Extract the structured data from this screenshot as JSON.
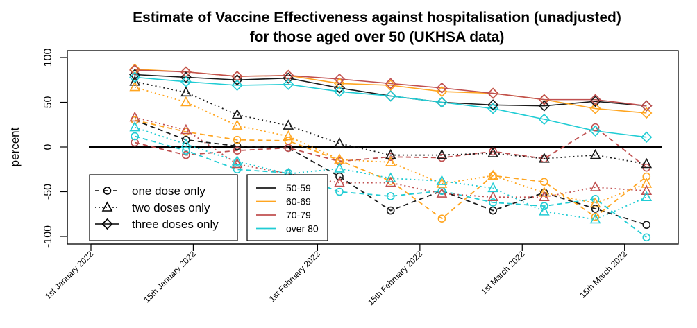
{
  "chart_data": {
    "type": "line",
    "title": [
      "Estimate of Vaccine Effectiveness against hospitalisation (unadjusted)",
      "for those aged over 50 (UKHSA data)"
    ],
    "xlabel": "",
    "ylabel": "percent",
    "ylim": [
      -110,
      110
    ],
    "yticks": [
      100,
      50,
      0,
      -50,
      -100
    ],
    "xlim": [
      "2021-12-25",
      "2022-03-26"
    ],
    "xticks": [
      {
        "date": "2022-01-01",
        "label": "1st January 2022"
      },
      {
        "date": "2022-01-15",
        "label": "15th January 2022"
      },
      {
        "date": "2022-02-01",
        "label": "1st February 2022"
      },
      {
        "date": "2022-02-15",
        "label": "15th February 2022"
      },
      {
        "date": "2022-03-01",
        "label": "1st March 2022"
      },
      {
        "date": "2022-03-15",
        "label": "15th March 2022"
      }
    ],
    "reference_line": 0,
    "x": [
      "2022-01-07",
      "2022-01-14",
      "2022-01-21",
      "2022-01-28",
      "2022-02-04",
      "2022-02-11",
      "2022-02-18",
      "2022-02-25",
      "2022-03-04",
      "2022-03-11",
      "2022-03-18"
    ],
    "age_groups": [
      {
        "name": "50-59",
        "color": "#1a1a1a"
      },
      {
        "name": "60-69",
        "color": "#ffa520"
      },
      {
        "name": "70-79",
        "color": "#c05050"
      },
      {
        "name": "over 80",
        "color": "#20ccd4"
      }
    ],
    "dose_types": [
      {
        "name": "one dose only",
        "marker": "circle",
        "line": "dashed"
      },
      {
        "name": "two doses only",
        "marker": "triangle",
        "line": "dotted"
      },
      {
        "name": "three doses only",
        "marker": "diamond",
        "line": "solid"
      }
    ],
    "series": [
      {
        "name": "one dose only, 50-59",
        "dose": "one dose only",
        "age": "50-59",
        "values": [
          30,
          8,
          1,
          -1,
          -33,
          -71,
          -49,
          -71,
          -51,
          -69,
          -87
        ]
      },
      {
        "name": "one dose only, 60-69",
        "dose": "one dose only",
        "age": "60-69",
        "values": [
          30,
          17,
          8,
          7,
          -15,
          -38,
          -80,
          -32,
          -39,
          -78,
          -33
        ]
      },
      {
        "name": "one dose only, 70-79",
        "dose": "one dose only",
        "age": "70-79",
        "values": [
          5,
          -9,
          -4,
          -1,
          -16,
          -11,
          -12,
          -5,
          -13,
          22,
          -23
        ]
      },
      {
        "name": "one dose only, over 80",
        "dose": "one dose only",
        "age": "over 80",
        "values": [
          12,
          -4,
          -25,
          -29,
          -50,
          -55,
          -49,
          -62,
          -66,
          -58,
          -101
        ]
      },
      {
        "name": "two doses only, 50-59",
        "dose": "two doses only",
        "age": "50-59",
        "values": [
          73,
          61,
          36,
          24,
          4,
          -9,
          -9,
          -7,
          -13,
          -9,
          -19
        ]
      },
      {
        "name": "two doses only, 60-69",
        "dose": "two doses only",
        "age": "60-69",
        "values": [
          67,
          50,
          24,
          12,
          -14,
          -17,
          -41,
          -32,
          -51,
          -63,
          -41
        ]
      },
      {
        "name": "two doses only, 70-79",
        "dose": "two doses only",
        "age": "70-79",
        "values": [
          33,
          19,
          -19,
          -30,
          -40,
          -40,
          -52,
          -56,
          -56,
          -45,
          -49
        ]
      },
      {
        "name": "two doses only, over 80",
        "dose": "two doses only",
        "age": "over 80",
        "values": [
          22,
          3,
          -16,
          -30,
          -24,
          -35,
          -38,
          -46,
          -72,
          -81,
          -56
        ]
      },
      {
        "name": "three doses only, 50-59",
        "dose": "three doses only",
        "age": "50-59",
        "values": [
          81,
          78,
          75,
          77,
          66,
          57,
          50,
          47,
          46,
          51,
          46
        ]
      },
      {
        "name": "three doses only, 60-69",
        "dose": "three doses only",
        "age": "60-69",
        "values": [
          87,
          84,
          79,
          80,
          71,
          69,
          62,
          60,
          53,
          43,
          38
        ]
      },
      {
        "name": "three doses only, 70-79",
        "dose": "three doses only",
        "age": "70-79",
        "values": [
          86,
          84,
          79,
          80,
          76,
          71,
          66,
          60,
          53,
          53,
          46
        ]
      },
      {
        "name": "three doses only, over 80",
        "dose": "three doses only",
        "age": "over 80",
        "values": [
          78,
          73,
          69,
          70,
          62,
          57,
          50,
          43,
          31,
          18,
          11
        ]
      }
    ],
    "legends": [
      {
        "position": "bottom-left",
        "entries": [
          "one dose only",
          "two doses only",
          "three doses only"
        ]
      },
      {
        "position": "bottom-left-inner",
        "entries": [
          "50-59",
          "60-69",
          "70-79",
          "over 80"
        ]
      }
    ],
    "grid": false
  }
}
